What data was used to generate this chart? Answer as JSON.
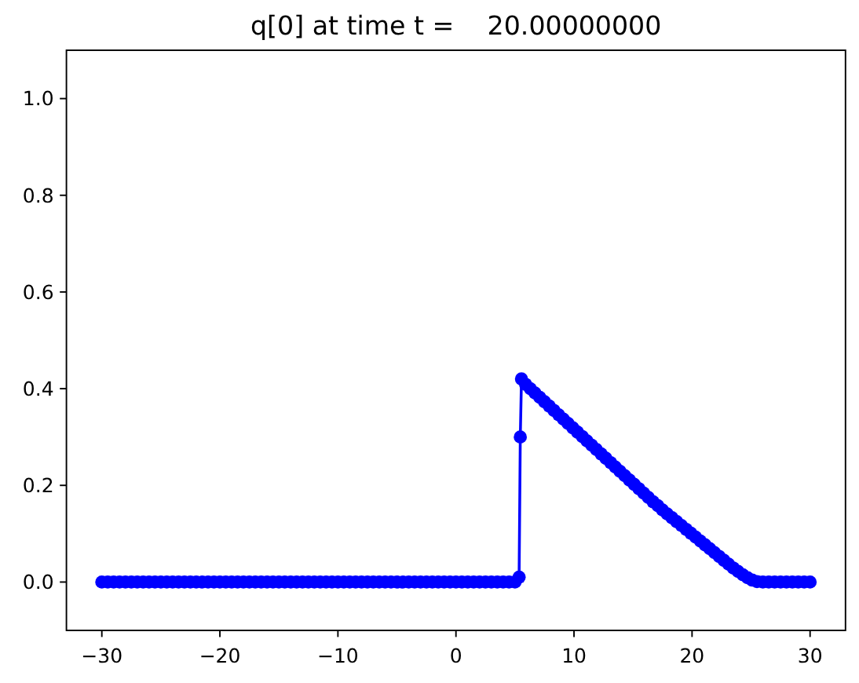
{
  "chart_data": {
    "type": "line",
    "title": "q[0] at time t =    20.00000000",
    "x": [
      -30,
      -29.5,
      -29,
      -28.5,
      -28,
      -27.5,
      -27,
      -26.5,
      -26,
      -25.5,
      -25,
      -24.5,
      -24,
      -23.5,
      -23,
      -22.5,
      -22,
      -21.5,
      -21,
      -20.5,
      -20,
      -19.5,
      -19,
      -18.5,
      -18,
      -17.5,
      -17,
      -16.5,
      -16,
      -15.5,
      -15,
      -14.5,
      -14,
      -13.5,
      -13,
      -12.5,
      -12,
      -11.5,
      -11,
      -10.5,
      -10,
      -9.5,
      -9,
      -8.5,
      -8,
      -7.5,
      -7,
      -6.5,
      -6,
      -5.5,
      -5,
      -4.5,
      -4,
      -3.5,
      -3,
      -2.5,
      -2,
      -1.5,
      -1,
      -0.5,
      0,
      0.5,
      1,
      1.5,
      2,
      2.5,
      3,
      3.5,
      4,
      4.5,
      5,
      5.35,
      5.45,
      5.55,
      5.9,
      6.3,
      6.7,
      7.1,
      7.5,
      7.9,
      8.3,
      8.7,
      9.1,
      9.5,
      9.9,
      10.3,
      10.7,
      11.1,
      11.5,
      11.9,
      12.3,
      12.7,
      13.1,
      13.5,
      13.9,
      14.3,
      14.7,
      15.1,
      15.5,
      15.9,
      16.3,
      16.7,
      17.1,
      17.5,
      17.9,
      18.3,
      18.7,
      19.1,
      19.5,
      19.9,
      20.3,
      20.7,
      21.1,
      21.5,
      21.9,
      22.3,
      22.7,
      23.1,
      23.5,
      23.9,
      24.3,
      24.7,
      25.1,
      25.5,
      26,
      26.5,
      27,
      27.5,
      28,
      28.5,
      29,
      29.5,
      30
    ],
    "values": [
      0,
      0,
      0,
      0,
      0,
      0,
      0,
      0,
      0,
      0,
      0,
      0,
      0,
      0,
      0,
      0,
      0,
      0,
      0,
      0,
      0,
      0,
      0,
      0,
      0,
      0,
      0,
      0,
      0,
      0,
      0,
      0,
      0,
      0,
      0,
      0,
      0,
      0,
      0,
      0,
      0,
      0,
      0,
      0,
      0,
      0,
      0,
      0,
      0,
      0,
      0,
      0,
      0,
      0,
      0,
      0,
      0,
      0,
      0,
      0,
      0,
      0,
      0,
      0,
      0,
      0,
      0,
      0,
      0,
      0,
      0,
      0.01,
      0.3,
      0.42,
      0.409,
      0.4,
      0.391,
      0.382,
      0.373,
      0.364,
      0.355,
      0.346,
      0.337,
      0.328,
      0.319,
      0.31,
      0.301,
      0.292,
      0.283,
      0.274,
      0.265,
      0.256,
      0.247,
      0.238,
      0.229,
      0.22,
      0.211,
      0.202,
      0.193,
      0.184,
      0.175,
      0.166,
      0.158,
      0.149,
      0.141,
      0.133,
      0.125,
      0.117,
      0.109,
      0.101,
      0.093,
      0.085,
      0.077,
      0.069,
      0.061,
      0.053,
      0.045,
      0.037,
      0.029,
      0.022,
      0.015,
      0.009,
      0.004,
      0.001,
      0,
      0,
      0,
      0,
      0,
      0,
      0,
      0,
      0
    ],
    "color": "#0000ff",
    "marker": "circle",
    "xlim": [
      -33,
      33
    ],
    "ylim": [
      -0.1,
      1.1
    ],
    "xticks": [
      {
        "value": -30,
        "label": "−30"
      },
      {
        "value": -20,
        "label": "−20"
      },
      {
        "value": -10,
        "label": "−10"
      },
      0,
      10,
      20,
      30
    ],
    "yticks": [
      {
        "value": 0,
        "label": "0.0"
      },
      0.2,
      0.4,
      0.6,
      0.8,
      {
        "value": 1,
        "label": "1.0"
      }
    ]
  }
}
